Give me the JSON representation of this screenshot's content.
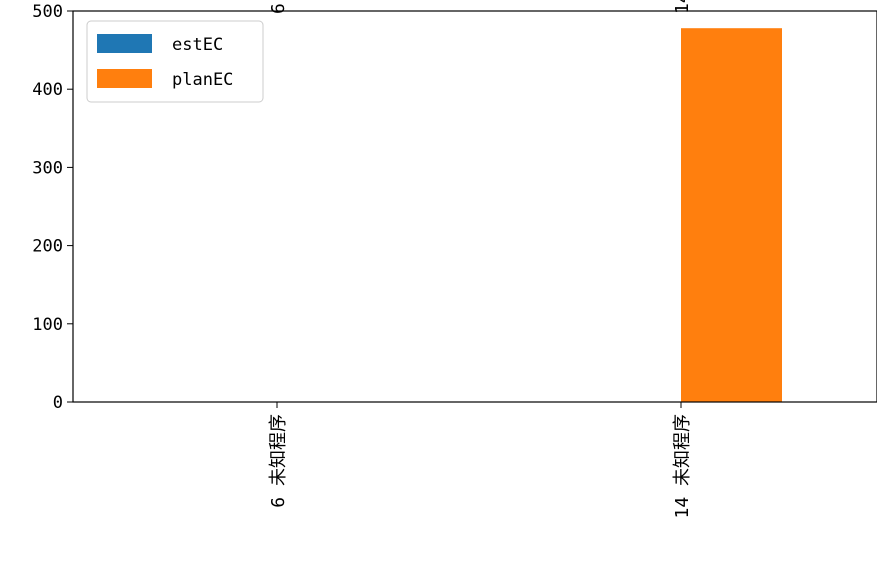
{
  "chart_data": {
    "type": "bar",
    "categories": [
      "6 未知程序",
      "14 未知程序"
    ],
    "series": [
      {
        "name": "estEC",
        "color": "#1f77b4",
        "values": [
          0,
          0
        ]
      },
      {
        "name": "planEC",
        "color": "#ff7f0e",
        "values": [
          0,
          478
        ]
      }
    ],
    "ylim": [
      0,
      500
    ],
    "yticks": [
      0,
      100,
      200,
      300,
      400,
      500
    ],
    "title": "",
    "xlabel": "",
    "ylabel": "",
    "grid": false,
    "legend_position": "top-left"
  }
}
